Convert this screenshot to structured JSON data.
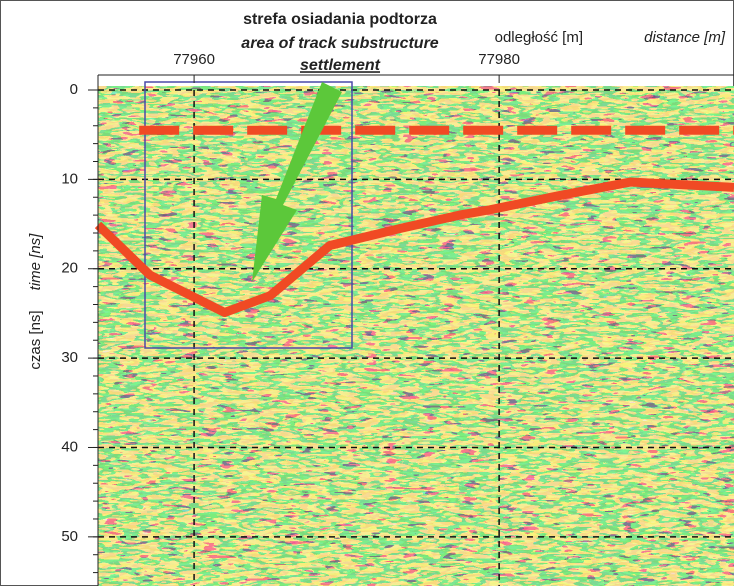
{
  "chart_data": {
    "type": "radargram",
    "annotation_lines": [
      "strefa osiadania podtorza",
      "area of track substructure",
      "settlement"
    ],
    "xlabel": [
      "odległość [m]",
      "distance [m]"
    ],
    "ylabel": [
      "czas [ns]",
      "time [ns]"
    ],
    "xlim": [
      77953.7,
      77995.4
    ],
    "xticks": [
      77960,
      77980
    ],
    "ylim": [
      0,
      55.5
    ],
    "yticks": [
      0,
      10,
      20,
      30,
      40,
      50
    ],
    "grid": true,
    "series": [
      {
        "color": "#f04a24",
        "style": "solid",
        "x": [
          77953.7,
          77957.1,
          77962.0,
          77965.0,
          77968.9,
          77973.5,
          77977.4,
          77979.4,
          77984.0,
          77988.6,
          77995.4
        ],
        "values": [
          15.1,
          20.7,
          24.9,
          23.0,
          17.4,
          15.5,
          14.0,
          13.4,
          11.8,
          10.3,
          10.9
        ]
      },
      {
        "color": "#f04a24",
        "style": "dashed",
        "x": [
          77956.4,
          77995.4
        ],
        "values": [
          4.5,
          4.5
        ]
      }
    ]
  }
}
